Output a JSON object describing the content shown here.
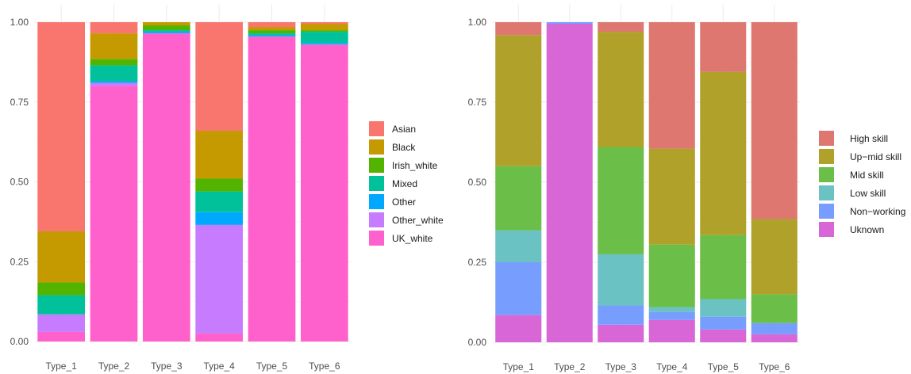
{
  "chart_data": [
    {
      "type": "bar",
      "stacked": true,
      "categories": [
        "Type_1",
        "Type_2",
        "Type_3",
        "Type_4",
        "Type_5",
        "Type_6"
      ],
      "ylim": [
        0,
        1
      ],
      "yticks": [
        "0.00",
        "0.25",
        "0.50",
        "0.75",
        "1.00"
      ],
      "grid": true,
      "legend_position": "right",
      "series": [
        {
          "name": "UK_white",
          "color": "#FF61CC",
          "values": [
            0.03,
            0.8,
            0.965,
            0.025,
            0.955,
            0.93
          ]
        },
        {
          "name": "Other_white",
          "color": "#C77CFF",
          "values": [
            0.055,
            0.01,
            0.0,
            0.34,
            0.0,
            0.0
          ]
        },
        {
          "name": "Other",
          "color": "#00A9FF",
          "values": [
            0.0,
            0.005,
            0.005,
            0.04,
            0.005,
            0.005
          ]
        },
        {
          "name": "Mixed",
          "color": "#00C19A",
          "values": [
            0.06,
            0.05,
            0.005,
            0.065,
            0.005,
            0.035
          ]
        },
        {
          "name": "Irish_white",
          "color": "#53B400",
          "values": [
            0.04,
            0.02,
            0.015,
            0.04,
            0.01,
            0.005
          ]
        },
        {
          "name": "Black",
          "color": "#C49A00",
          "values": [
            0.16,
            0.08,
            0.01,
            0.15,
            0.01,
            0.02
          ]
        },
        {
          "name": "Asian",
          "color": "#F8766D",
          "values": [
            0.655,
            0.035,
            0.0,
            0.34,
            0.015,
            0.005
          ]
        }
      ],
      "legend_order": [
        "Asian",
        "Black",
        "Irish_white",
        "Mixed",
        "Other",
        "Other_white",
        "UK_white"
      ]
    },
    {
      "type": "bar",
      "stacked": true,
      "categories": [
        "Type_1",
        "Type_2",
        "Type_3",
        "Type_4",
        "Type_5",
        "Type_6"
      ],
      "ylim": [
        0,
        1
      ],
      "yticks": [
        "0.00",
        "0.25",
        "0.50",
        "0.75",
        "1.00"
      ],
      "grid": true,
      "legend_position": "right",
      "series": [
        {
          "name": "Uknown",
          "color": "#D866D6",
          "values": [
            0.085,
            0.995,
            0.055,
            0.07,
            0.04,
            0.025
          ]
        },
        {
          "name": "Non−working",
          "color": "#779EFF",
          "values": [
            0.165,
            0.005,
            0.06,
            0.025,
            0.04,
            0.035
          ]
        },
        {
          "name": "Low skill",
          "color": "#6BC2C2",
          "values": [
            0.1,
            0.0,
            0.16,
            0.015,
            0.055,
            0.0
          ]
        },
        {
          "name": "Mid skill",
          "color": "#6BBE48",
          "values": [
            0.2,
            0.0,
            0.335,
            0.195,
            0.2,
            0.09
          ]
        },
        {
          "name": "Up−mid skill",
          "color": "#AFA12A",
          "values": [
            0.41,
            0.0,
            0.36,
            0.3,
            0.51,
            0.235
          ]
        },
        {
          "name": "High skill",
          "color": "#DE776F",
          "values": [
            0.04,
            0.0,
            0.03,
            0.395,
            0.155,
            0.615
          ]
        }
      ],
      "legend_order": [
        "High skill",
        "Up−mid skill",
        "Mid skill",
        "Low skill",
        "Non−working",
        "Uknown"
      ]
    }
  ]
}
